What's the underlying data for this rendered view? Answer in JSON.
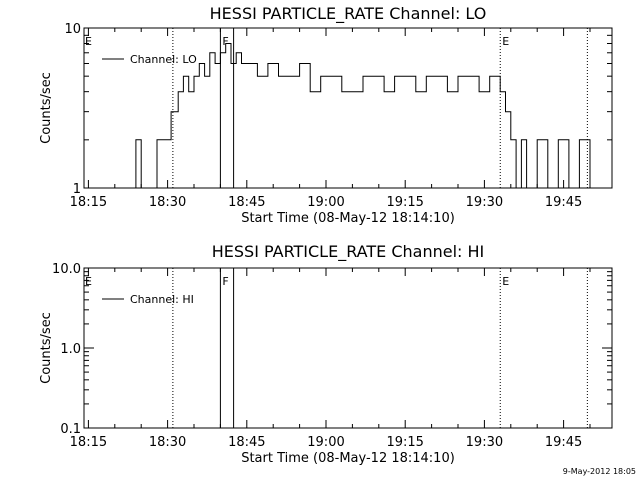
{
  "chart_data": [
    {
      "type": "line",
      "title": "HESSI PARTICLE_RATE Channel: LO",
      "xlabel": "Start Time (08-May-12 18:14:10)",
      "ylabel": "Counts/sec",
      "y_scale": "log",
      "ylim": [
        1,
        10
      ],
      "y_tick_labels": [
        "1",
        "10"
      ],
      "xlim": [
        "18:14:10",
        "19:54:10"
      ],
      "x_tick_labels": [
        "18:15",
        "18:30",
        "18:45",
        "19:00",
        "19:15",
        "19:30",
        "19:45"
      ],
      "legend": {
        "placement": "top-left",
        "entries": [
          "Channel: LO"
        ]
      },
      "series": [
        {
          "name": "Channel: LO",
          "x": [
            "18:14:10",
            "18:20:00",
            "18:24:00",
            "18:25:00",
            "18:28:00",
            "18:30:40",
            "18:32:00",
            "18:33:00",
            "18:34:00",
            "18:35:00",
            "18:36:00",
            "18:37:00",
            "18:38:00",
            "18:39:00",
            "18:40:00",
            "18:41:00",
            "18:42:00",
            "18:43:00",
            "18:44:00",
            "18:45:00",
            "18:47:00",
            "18:49:00",
            "18:51:00",
            "18:53:00",
            "18:55:00",
            "18:57:00",
            "18:59:00",
            "19:01:00",
            "19:03:00",
            "19:05:00",
            "19:07:00",
            "19:09:00",
            "19:11:00",
            "19:13:00",
            "19:15:00",
            "19:17:00",
            "19:19:00",
            "19:21:00",
            "19:23:00",
            "19:25:00",
            "19:27:00",
            "19:29:00",
            "19:31:00",
            "19:32:00",
            "19:33:00",
            "19:34:00",
            "19:35:00",
            "19:36:00",
            "19:37:00",
            "19:38:00",
            "19:40:00",
            "19:42:00",
            "19:44:00",
            "19:46:00",
            "19:48:00",
            "19:50:00"
          ],
          "y": [
            1,
            1,
            2,
            1,
            2,
            3,
            4,
            5,
            4,
            5,
            6,
            5,
            7,
            6,
            7,
            8,
            6,
            7,
            6,
            6,
            5,
            6,
            5,
            5,
            6,
            4,
            5,
            5,
            4,
            4,
            5,
            5,
            4,
            5,
            5,
            4,
            5,
            5,
            4,
            5,
            5,
            4,
            5,
            5,
            4,
            3,
            2,
            1,
            2,
            1,
            2,
            1,
            2,
            1,
            2,
            1
          ]
        }
      ],
      "annotations": [
        {
          "label": "E",
          "x": "18:14:10"
        },
        {
          "label": "F",
          "x": "18:40:00"
        },
        {
          "label": "E",
          "x": "19:33:00"
        }
      ],
      "markers": [
        "18:31:00",
        "18:40:00",
        "18:42:30",
        "19:33:00",
        "19:49:30"
      ]
    },
    {
      "type": "line",
      "title": "HESSI PARTICLE_RATE Channel: HI",
      "xlabel": "Start Time (08-May-12 18:14:10)",
      "ylabel": "Counts/sec",
      "y_scale": "log",
      "ylim": [
        0.1,
        10
      ],
      "y_tick_labels": [
        "0.1",
        "1.0",
        "10.0"
      ],
      "xlim": [
        "18:14:10",
        "19:54:10"
      ],
      "x_tick_labels": [
        "18:15",
        "18:30",
        "18:45",
        "19:00",
        "19:15",
        "19:30",
        "19:45"
      ],
      "legend": {
        "placement": "top-left",
        "entries": [
          "Channel: HI"
        ]
      },
      "series": [
        {
          "name": "Channel: HI",
          "x": [],
          "y": []
        }
      ],
      "annotations": [
        {
          "label": "E",
          "x": "18:14:10"
        },
        {
          "label": "F",
          "x": "18:40:00"
        },
        {
          "label": "E",
          "x": "19:33:00"
        }
      ],
      "markers": [
        "18:31:00",
        "18:40:00",
        "18:42:30",
        "19:33:00",
        "19:49:30"
      ]
    }
  ],
  "footer": {
    "timestamp": "9-May-2012 18:05"
  }
}
